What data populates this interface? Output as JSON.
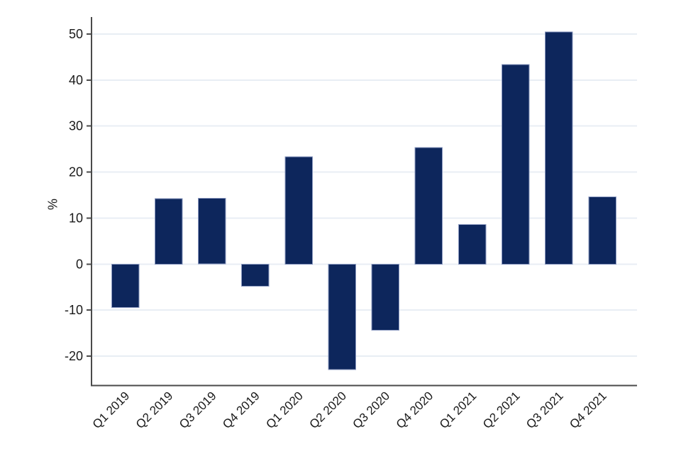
{
  "page": {
    "background": "#ffffff"
  },
  "chart_data": {
    "type": "bar",
    "title": "",
    "xlabel": "",
    "ylabel": "%",
    "categories": [
      "Q1 2019",
      "Q2 2019",
      "Q3 2019",
      "Q4 2019",
      "Q1 2020",
      "Q2 2020",
      "Q3 2020",
      "Q4 2020",
      "Q1 2021",
      "Q2 2021",
      "Q3 2021",
      "Q4 2021"
    ],
    "values": [
      -9.4,
      14.2,
      14.3,
      -4.8,
      23.3,
      -22.9,
      -14.4,
      25.3,
      8.6,
      43.4,
      50.5,
      14.6
    ],
    "yticks": [
      -20,
      -10,
      0,
      10,
      20,
      30,
      40,
      50
    ],
    "ylim": [
      -26.4,
      53.7
    ],
    "grid": true,
    "legend_position": "none",
    "colors": {
      "bar_fill": "#0d265c",
      "bar_edge": "#8b99c0",
      "gridline": "#e8eef4",
      "axis": "#4a4a4a",
      "tick_text": "#1a1a1a"
    }
  }
}
